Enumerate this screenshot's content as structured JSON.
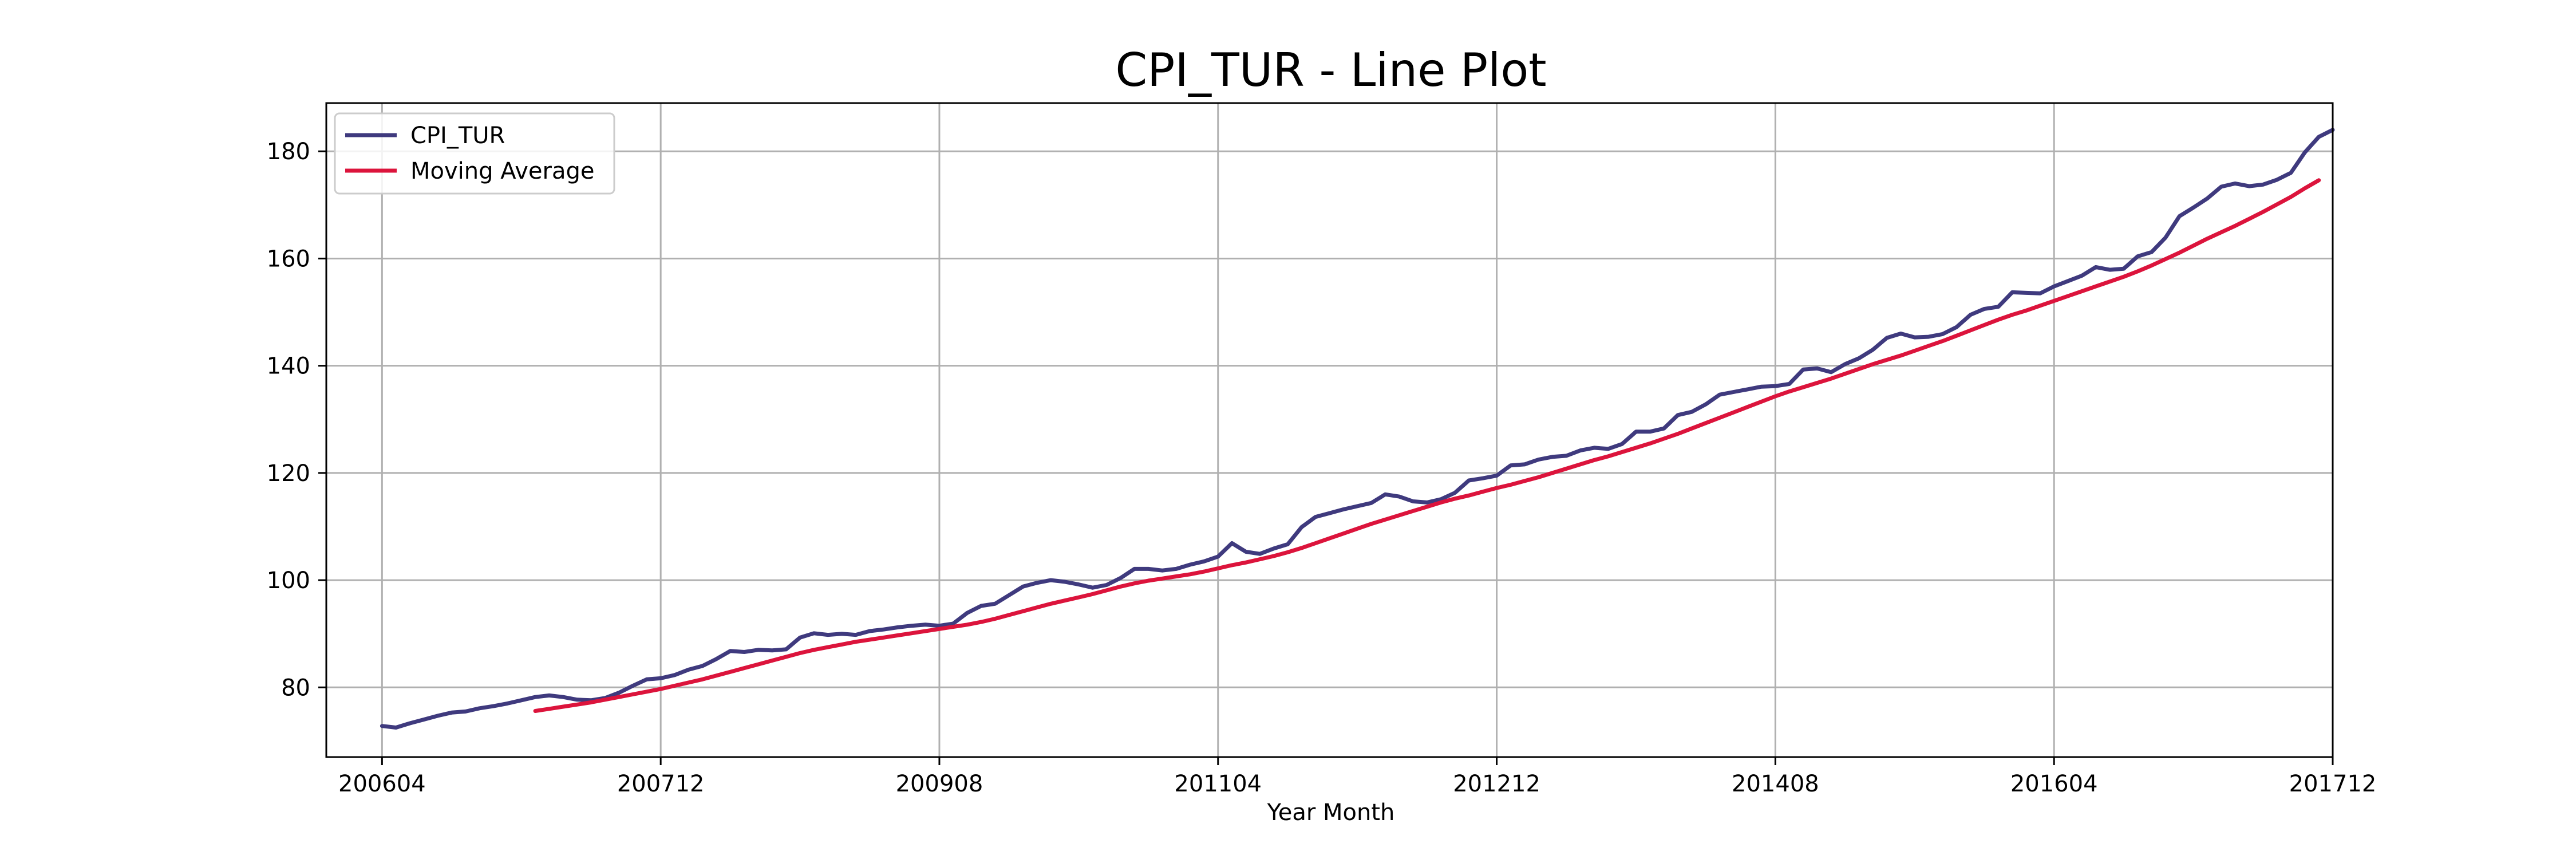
{
  "chart_data": {
    "type": "line",
    "title": "CPI_TUR - Line Plot",
    "xlabel": "Year Month",
    "ylabel": "",
    "x_start": "2006-04",
    "x_end": "2017-06",
    "xlim": [
      "2005-12",
      "2017-12"
    ],
    "ylim": [
      67,
      189
    ],
    "x_ticks": [
      "200604",
      "200712",
      "200908",
      "201104",
      "201212",
      "201408",
      "201604",
      "201712"
    ],
    "y_ticks": [
      80,
      100,
      120,
      140,
      160,
      180
    ],
    "grid": true,
    "legend_position": "top-left",
    "series": [
      {
        "name": "CPI_TUR",
        "color": "#3f3a7e",
        "start": "2006-04",
        "values": [
          72.8,
          72.5,
          73.3,
          74.0,
          74.7,
          75.3,
          75.5,
          76.1,
          76.5,
          77.0,
          77.6,
          78.2,
          78.5,
          78.2,
          77.7,
          77.6,
          78.0,
          79.0,
          80.3,
          81.5,
          81.7,
          82.3,
          83.3,
          84.0,
          85.3,
          86.8,
          86.6,
          87.0,
          86.9,
          87.1,
          89.3,
          90.1,
          89.8,
          90.0,
          89.8,
          90.5,
          90.8,
          91.2,
          91.5,
          91.7,
          91.5,
          91.9,
          93.9,
          95.2,
          95.6,
          97.2,
          98.8,
          99.5,
          100.0,
          99.7,
          99.2,
          98.6,
          99.1,
          100.4,
          102.1,
          102.1,
          101.8,
          102.1,
          102.9,
          103.5,
          104.4,
          106.9,
          105.3,
          104.9,
          105.9,
          106.7,
          109.9,
          111.8,
          112.5,
          113.2,
          113.8,
          114.4,
          116.0,
          115.6,
          114.7,
          114.5,
          115.1,
          116.3,
          118.6,
          119.0,
          119.5,
          121.4,
          121.6,
          122.5,
          123.0,
          123.2,
          124.2,
          124.7,
          124.5,
          125.4,
          127.7,
          127.7,
          128.3,
          130.8,
          131.4,
          132.8,
          134.6,
          135.1,
          135.6,
          136.1,
          136.2,
          136.6,
          139.3,
          139.5,
          138.8,
          140.3,
          141.4,
          143.0,
          145.2,
          146.0,
          145.3,
          145.4,
          145.9,
          147.2,
          149.5,
          150.6,
          151.0,
          153.7,
          153.6,
          153.5,
          154.8,
          155.8,
          156.8,
          158.4,
          157.9,
          158.1,
          160.4,
          161.2,
          163.9,
          167.9,
          169.5,
          171.2,
          173.4,
          174.0,
          173.5,
          173.8,
          174.7,
          176.0,
          179.8,
          182.7,
          184.0
        ]
      },
      {
        "name": "Moving Average",
        "color": "#dc143c",
        "start": "2007-03",
        "values": [
          75.6,
          76.0,
          76.4,
          76.8,
          77.2,
          77.7,
          78.2,
          78.7,
          79.2,
          79.7,
          80.3,
          80.9,
          81.5,
          82.2,
          82.9,
          83.6,
          84.3,
          85.0,
          85.7,
          86.4,
          87.0,
          87.5,
          88.0,
          88.5,
          88.9,
          89.3,
          89.7,
          90.1,
          90.5,
          90.9,
          91.3,
          91.7,
          92.2,
          92.8,
          93.5,
          94.2,
          94.9,
          95.6,
          96.2,
          96.8,
          97.4,
          98.1,
          98.8,
          99.4,
          99.9,
          100.3,
          100.7,
          101.1,
          101.6,
          102.2,
          102.8,
          103.3,
          103.9,
          104.5,
          105.2,
          106.0,
          106.9,
          107.8,
          108.7,
          109.6,
          110.5,
          111.3,
          112.1,
          112.9,
          113.7,
          114.5,
          115.2,
          115.8,
          116.5,
          117.2,
          117.8,
          118.5,
          119.2,
          120.0,
          120.8,
          121.6,
          122.4,
          123.1,
          123.9,
          124.7,
          125.5,
          126.4,
          127.3,
          128.3,
          129.3,
          130.3,
          131.3,
          132.3,
          133.3,
          134.3,
          135.2,
          136.0,
          136.8,
          137.6,
          138.5,
          139.4,
          140.3,
          141.1,
          141.9,
          142.8,
          143.7,
          144.6,
          145.6,
          146.6,
          147.6,
          148.6,
          149.5,
          150.3,
          151.2,
          152.1,
          153.0,
          153.9,
          154.8,
          155.7,
          156.6,
          157.6,
          158.7,
          159.9,
          161.1,
          162.4,
          163.7,
          164.9,
          166.1,
          167.4,
          168.7,
          170.1,
          171.5,
          173.1,
          174.6
        ]
      }
    ]
  }
}
